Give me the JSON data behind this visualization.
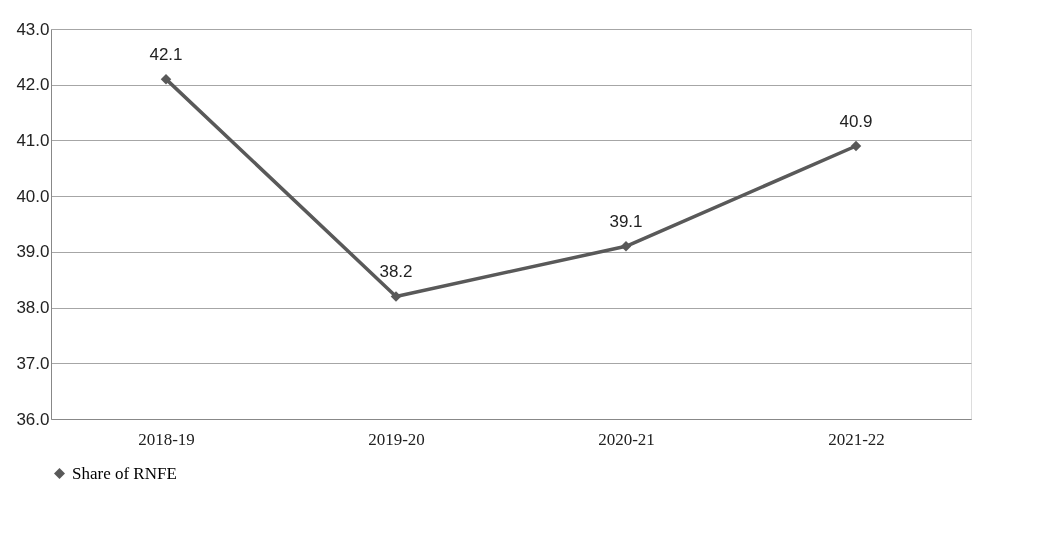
{
  "chart_data": {
    "type": "line",
    "categories": [
      "2018-19",
      "2019-20",
      "2020-21",
      "2021-22"
    ],
    "series": [
      {
        "name": "Share of RNFE",
        "color": "#595959",
        "values": [
          42.1,
          38.2,
          39.1,
          40.9
        ]
      }
    ],
    "ylim": [
      36,
      43
    ],
    "yticks": [
      {
        "value": 36,
        "label": "36.0"
      },
      {
        "value": 37,
        "label": "37.0"
      },
      {
        "value": 38,
        "label": "38.0"
      },
      {
        "value": 39,
        "label": "39.0"
      },
      {
        "value": 40,
        "label": "40.0"
      },
      {
        "value": 41,
        "label": "41.0"
      },
      {
        "value": 42,
        "label": "42.0"
      },
      {
        "value": 43,
        "label": "43.0"
      }
    ],
    "grid": "y",
    "legend": "bottom",
    "marker": "diamond",
    "line_style": "solid",
    "data_labels": true
  }
}
